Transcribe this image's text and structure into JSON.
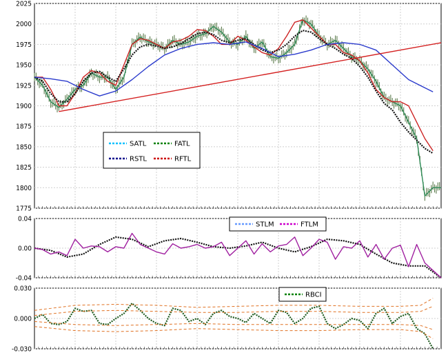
{
  "chart_data": [
    {
      "type": "line",
      "panel": "price",
      "ylim": [
        1775,
        2025
      ],
      "y_ticks": [
        "2025",
        "2000",
        "1975",
        "1950",
        "1925",
        "1900",
        "1875",
        "1850",
        "1825",
        "1800",
        "1775"
      ],
      "grid": true,
      "legend_placement": "center-left",
      "legend": [
        {
          "label": "SATL",
          "color": "#00bfff"
        },
        {
          "label": "FATL",
          "color": "#008000"
        },
        {
          "label": "RSTL",
          "color": "#00008b"
        },
        {
          "label": "RFTL",
          "color": "#cc0000"
        }
      ],
      "price_color": "#5a7a4a",
      "series": [
        {
          "name": "FATL",
          "color": "#2e8b57",
          "x": [
            0,
            2,
            4,
            6,
            8,
            10,
            12,
            14,
            16,
            18,
            20,
            22,
            24,
            26,
            28,
            30,
            32,
            34,
            36,
            38,
            40,
            42,
            44,
            46,
            48,
            50,
            52,
            54,
            56,
            58,
            60,
            62,
            64,
            66,
            68,
            70,
            72,
            74,
            76,
            78,
            80,
            82,
            84,
            86,
            88,
            90,
            92,
            94,
            96,
            98,
            100
          ],
          "y": [
            1935,
            1925,
            1905,
            1898,
            1908,
            1920,
            1925,
            1940,
            1935,
            1935,
            1920,
            1935,
            1975,
            1984,
            1978,
            1975,
            1970,
            1980,
            1975,
            1978,
            1985,
            1988,
            1997,
            1990,
            1978,
            1975,
            1985,
            1970,
            1978,
            1960,
            1958,
            1965,
            1975,
            2005,
            2000,
            1985,
            1975,
            1980,
            1970,
            1960,
            1955,
            1945,
            1930,
            1910,
            1905,
            1900,
            1880,
            1860,
            1790,
            1800,
            1800
          ]
        },
        {
          "name": "RFTL",
          "color": "#cc2222",
          "x": [
            0,
            2,
            4,
            6,
            8,
            10,
            12,
            14,
            16,
            18,
            20,
            22,
            24,
            26,
            28,
            30,
            32,
            34,
            36,
            38,
            40,
            42,
            44,
            46,
            48,
            50,
            52,
            54,
            56,
            58,
            60,
            62,
            64,
            66,
            68,
            70,
            72,
            74,
            76,
            78,
            80,
            82,
            84,
            86,
            88,
            90,
            92,
            94,
            96,
            98
          ],
          "y": [
            1935,
            1935,
            1920,
            1900,
            1900,
            1915,
            1935,
            1943,
            1940,
            1930,
            1925,
            1950,
            1975,
            1982,
            1980,
            1975,
            1970,
            1978,
            1980,
            1985,
            1993,
            1992,
            1985,
            1975,
            1975,
            1985,
            1980,
            1972,
            1965,
            1962,
            1970,
            1985,
            2002,
            2005,
            1995,
            1985,
            1975,
            1975,
            1965,
            1962,
            1955,
            1940,
            1920,
            1910,
            1905,
            1905,
            1900,
            1880,
            1860,
            1845
          ]
        },
        {
          "name": "RSTL",
          "color": "#111111",
          "dotted": true,
          "x": [
            0,
            2,
            4,
            6,
            8,
            10,
            12,
            14,
            16,
            18,
            20,
            22,
            24,
            26,
            28,
            30,
            32,
            34,
            36,
            38,
            40,
            42,
            44,
            46,
            48,
            50,
            52,
            54,
            56,
            58,
            60,
            62,
            64,
            66,
            68,
            70,
            72,
            74,
            76,
            78,
            80,
            82,
            84,
            86,
            88,
            90,
            92,
            94,
            96,
            98
          ],
          "y": [
            1935,
            1930,
            1915,
            1905,
            1905,
            1915,
            1930,
            1940,
            1942,
            1935,
            1930,
            1945,
            1962,
            1972,
            1975,
            1973,
            1970,
            1972,
            1976,
            1982,
            1988,
            1990,
            1987,
            1980,
            1977,
            1980,
            1982,
            1975,
            1968,
            1965,
            1968,
            1975,
            1985,
            1992,
            1990,
            1982,
            1975,
            1970,
            1963,
            1958,
            1948,
            1935,
            1918,
            1903,
            1895,
            1880,
            1868,
            1858,
            1848,
            1842
          ]
        },
        {
          "name": "SATL",
          "color": "#2a3acc",
          "x": [
            0,
            4,
            8,
            12,
            16,
            20,
            24,
            28,
            32,
            36,
            40,
            44,
            48,
            52,
            56,
            60,
            64,
            68,
            72,
            76,
            80,
            84,
            88,
            92,
            96,
            98
          ],
          "y": [
            1935,
            1933,
            1930,
            1920,
            1912,
            1918,
            1932,
            1948,
            1962,
            1970,
            1975,
            1977,
            1975,
            1978,
            1970,
            1960,
            1963,
            1968,
            1975,
            1977,
            1975,
            1968,
            1950,
            1932,
            1922,
            1917
          ]
        },
        {
          "name": "Trendline",
          "color": "#d42020",
          "x": [
            6,
            100
          ],
          "y": [
            1893,
            1977
          ]
        }
      ]
    },
    {
      "type": "line",
      "panel": "stlm-ftlm",
      "ylim": [
        -0.04,
        0.04
      ],
      "y_ticks": [
        "0.04",
        "0.00",
        "-0.04"
      ],
      "grid": true,
      "legend_placement": "top-right",
      "legend": [
        {
          "label": "STLM",
          "color": "#6699ff"
        },
        {
          "label": "FTLM",
          "color": "#cc00cc"
        }
      ],
      "series": [
        {
          "name": "STLM",
          "color": "#111111",
          "dotted": true,
          "x": [
            0,
            4,
            8,
            12,
            16,
            20,
            24,
            28,
            32,
            36,
            40,
            44,
            48,
            52,
            56,
            60,
            64,
            68,
            72,
            76,
            80,
            84,
            88,
            92,
            96,
            100
          ],
          "y": [
            0.0,
            -0.003,
            -0.012,
            -0.008,
            0.005,
            0.015,
            0.012,
            0.002,
            0.01,
            0.013,
            0.008,
            0.002,
            0.0,
            0.003,
            0.008,
            0.0,
            -0.005,
            0.002,
            0.012,
            0.01,
            0.005,
            -0.008,
            -0.02,
            -0.024,
            -0.024,
            -0.04
          ]
        },
        {
          "name": "FTLM",
          "color": "#a020a0",
          "x": [
            0,
            2,
            4,
            6,
            8,
            10,
            12,
            14,
            16,
            18,
            20,
            22,
            24,
            26,
            28,
            30,
            32,
            34,
            36,
            38,
            40,
            42,
            44,
            46,
            48,
            50,
            52,
            54,
            56,
            58,
            60,
            62,
            64,
            66,
            68,
            70,
            72,
            74,
            76,
            78,
            80,
            82,
            84,
            86,
            88,
            90,
            92,
            94,
            96,
            98,
            100
          ],
          "y": [
            0.0,
            -0.002,
            -0.008,
            -0.005,
            -0.01,
            0.012,
            0.0,
            0.003,
            0.002,
            -0.005,
            0.002,
            0.0,
            0.02,
            0.005,
            0.0,
            -0.005,
            -0.008,
            0.006,
            0.0,
            0.002,
            0.005,
            0.0,
            0.002,
            0.008,
            -0.01,
            0.0,
            0.01,
            -0.008,
            0.006,
            -0.005,
            0.003,
            0.005,
            0.015,
            -0.01,
            0.0,
            0.012,
            0.008,
            -0.015,
            0.002,
            0.0,
            0.01,
            -0.012,
            0.005,
            -0.015,
            0.0,
            0.004,
            -0.025,
            0.005,
            -0.02,
            -0.03,
            -0.04
          ]
        }
      ]
    },
    {
      "type": "line",
      "panel": "rbci",
      "ylim": [
        -0.03,
        0.03
      ],
      "y_ticks": [
        "0.030",
        "0.000",
        "-0.030"
      ],
      "grid": true,
      "legend_placement": "top-right",
      "legend": [
        {
          "label": "RBCI",
          "color": "#008000"
        }
      ],
      "series": [
        {
          "name": "RBCI",
          "color": "#1e5a1e",
          "dotted": true,
          "x": [
            0,
            2,
            4,
            6,
            8,
            10,
            12,
            14,
            16,
            18,
            20,
            22,
            24,
            26,
            28,
            30,
            32,
            34,
            36,
            38,
            40,
            42,
            44,
            46,
            48,
            50,
            52,
            54,
            56,
            58,
            60,
            62,
            64,
            66,
            68,
            70,
            72,
            74,
            76,
            78,
            80,
            82,
            84,
            86,
            88,
            90,
            92,
            94,
            96,
            98
          ],
          "y": [
            0.0,
            0.004,
            -0.005,
            -0.006,
            -0.003,
            0.01,
            0.007,
            0.008,
            -0.005,
            -0.006,
            0.0,
            0.005,
            0.015,
            0.008,
            0.0,
            -0.005,
            -0.007,
            0.01,
            0.008,
            -0.003,
            0.0,
            -0.006,
            0.005,
            0.008,
            0.002,
            0.0,
            -0.004,
            0.005,
            0.0,
            -0.005,
            0.008,
            0.006,
            -0.005,
            0.0,
            0.01,
            0.012,
            -0.005,
            -0.01,
            -0.006,
            0.0,
            -0.002,
            -0.01,
            0.005,
            0.01,
            -0.005,
            0.002,
            0.005,
            -0.01,
            -0.015,
            -0.03
          ]
        },
        {
          "name": "Band upper outer",
          "color": "#e07020",
          "dashed": true,
          "x": [
            0,
            10,
            20,
            30,
            40,
            50,
            60,
            70,
            80,
            90,
            95,
            98
          ],
          "y": [
            0.008,
            0.013,
            0.014,
            0.013,
            0.011,
            0.012,
            0.013,
            0.013,
            0.012,
            0.012,
            0.013,
            0.02
          ]
        },
        {
          "name": "Band upper inner",
          "color": "#e07020",
          "dashed": true,
          "x": [
            0,
            10,
            20,
            30,
            40,
            50,
            60,
            70,
            80,
            90,
            95,
            98
          ],
          "y": [
            0.003,
            0.007,
            0.008,
            0.007,
            0.006,
            0.006,
            0.007,
            0.007,
            0.006,
            0.006,
            0.007,
            0.012
          ]
        },
        {
          "name": "Band lower inner",
          "color": "#e07020",
          "dashed": true,
          "x": [
            0,
            10,
            20,
            30,
            40,
            50,
            60,
            70,
            80,
            90,
            95,
            98
          ],
          "y": [
            -0.003,
            -0.006,
            -0.007,
            -0.006,
            -0.005,
            -0.006,
            -0.006,
            -0.006,
            -0.006,
            -0.006,
            -0.007,
            -0.011
          ]
        },
        {
          "name": "Band lower outer",
          "color": "#e07020",
          "dashed": true,
          "x": [
            0,
            10,
            20,
            30,
            40,
            50,
            60,
            70,
            80,
            90,
            95,
            98
          ],
          "y": [
            -0.008,
            -0.012,
            -0.013,
            -0.012,
            -0.01,
            -0.011,
            -0.012,
            -0.012,
            -0.011,
            -0.011,
            -0.013,
            -0.02
          ]
        }
      ]
    }
  ]
}
